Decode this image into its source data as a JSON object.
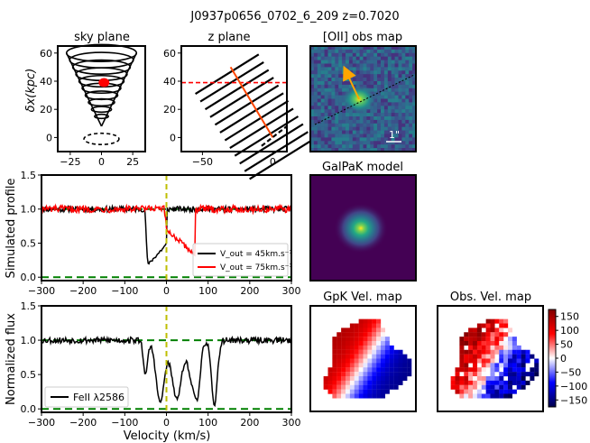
{
  "figure": {
    "title": "J0937p0656_0702_6_209 z=0.7020"
  },
  "colors": {
    "observed": "#000000",
    "model_red": "#ff0000",
    "continuum": "#008000",
    "velocity_marker": "#bfbf00",
    "outflow_axis": "#ff4500",
    "arrow": "#ffa500",
    "galaxy_dot": "#ff0000"
  },
  "chart_data": [
    {
      "id": "sky_plane",
      "type": "diagram",
      "title": "sky plane",
      "ylabel": "δx(kpc)",
      "xlim": [
        -35,
        35
      ],
      "ylim": [
        -10,
        65
      ],
      "xticks": [
        "−25",
        "0",
        "25"
      ],
      "xtick_values": [
        -25,
        0,
        25
      ],
      "yticks": [
        "0",
        "20",
        "40",
        "60"
      ],
      "ytick_values": [
        0,
        20,
        40,
        60
      ],
      "cone_ellipses": [
        {
          "cy": 60,
          "rx": 28,
          "ry": 6
        },
        {
          "cy": 55,
          "rx": 25.5,
          "ry": 5.5
        },
        {
          "cy": 50,
          "rx": 23,
          "ry": 5
        },
        {
          "cy": 45,
          "rx": 20.5,
          "ry": 4.5
        },
        {
          "cy": 40,
          "rx": 18,
          "ry": 4
        },
        {
          "cy": 35,
          "rx": 15.5,
          "ry": 3.5
        },
        {
          "cy": 30,
          "rx": 13,
          "ry": 3
        },
        {
          "cy": 25,
          "rx": 10.5,
          "ry": 2.5
        },
        {
          "cy": 20,
          "rx": 8,
          "ry": 2
        },
        {
          "cy": 15,
          "rx": 5.5,
          "ry": 1.5
        }
      ],
      "galaxy": {
        "x": 2,
        "y": 39
      },
      "dashed_ring": {
        "cy": -1,
        "rx": 14,
        "ry": 4
      }
    },
    {
      "id": "z_plane",
      "type": "diagram",
      "title": "z plane",
      "xlim": [
        -65,
        10
      ],
      "ylim": [
        -10,
        65
      ],
      "xticks": [
        "−50",
        "0"
      ],
      "xtick_values": [
        -50,
        0
      ],
      "yticks": [
        "0",
        "20",
        "40",
        "60"
      ],
      "ytick_values": [
        0,
        20,
        40,
        60
      ],
      "hline_y": 39,
      "axis_line": [
        [
          -30,
          50
        ],
        [
          0,
          0
        ]
      ]
    },
    {
      "id": "simulated_profile",
      "type": "line",
      "ylabel": "Simulated profile",
      "xlim": [
        -300,
        300
      ],
      "ylim": [
        -0.05,
        1.5
      ],
      "xticks": [
        "−300",
        "−200",
        "−100",
        "0",
        "100",
        "200",
        "300"
      ],
      "xtick_values": [
        -300,
        -200,
        -100,
        0,
        100,
        200,
        300
      ],
      "yticks": [
        "0.0",
        "0.5",
        "1.0",
        "1.5"
      ],
      "ytick_values": [
        0,
        0.5,
        1.0,
        1.5
      ],
      "continuum_levels": [
        0,
        1
      ],
      "vline_x": 0,
      "legend": [
        {
          "label": "V_out = 45km.s⁻¹",
          "color": "#000000"
        },
        {
          "label": "V_out = 75km.s⁻¹",
          "color": "#ff0000"
        }
      ],
      "series": [
        {
          "name": "V_out = 45km.s⁻¹",
          "color": "#000000",
          "kind": "sim45"
        },
        {
          "name": "V_out = 75km.s⁻¹",
          "color": "#ff0000",
          "kind": "sim75"
        }
      ]
    },
    {
      "id": "normalized_flux",
      "type": "line",
      "ylabel": "Normalized flux",
      "xlabel": "Velocity (km/s)",
      "xlim": [
        -300,
        300
      ],
      "ylim": [
        -0.05,
        1.5
      ],
      "xticks": [
        "−300",
        "−200",
        "−100",
        "0",
        "100",
        "200",
        "300"
      ],
      "xtick_values": [
        -300,
        -200,
        -100,
        0,
        100,
        200,
        300
      ],
      "yticks": [
        "0.0",
        "0.5",
        "1.0",
        "1.5"
      ],
      "ytick_values": [
        0,
        0.5,
        1.0,
        1.5
      ],
      "continuum_levels": [
        0,
        1
      ],
      "vline_x": 0,
      "legend": [
        {
          "label": "FeII λ2586",
          "color": "#000000"
        }
      ],
      "series": [
        {
          "name": "FeII λ2586",
          "color": "#000000",
          "kind": "obs"
        }
      ]
    }
  ],
  "maps": {
    "oii": {
      "title": "[OII] obs map",
      "scale_label": "1\""
    },
    "galpak": {
      "title": "GalPaK model"
    },
    "gpk_vel": {
      "title": "GpK Vel. map"
    },
    "obs_vel": {
      "title": "Obs. Vel. map"
    }
  },
  "colorbar": {
    "ticks": [
      "150",
      "100",
      "50",
      "0",
      "−50",
      "−100",
      "−150"
    ],
    "values": [
      150,
      100,
      50,
      0,
      -50,
      -100,
      -150
    ],
    "range": [
      -175,
      175
    ]
  }
}
